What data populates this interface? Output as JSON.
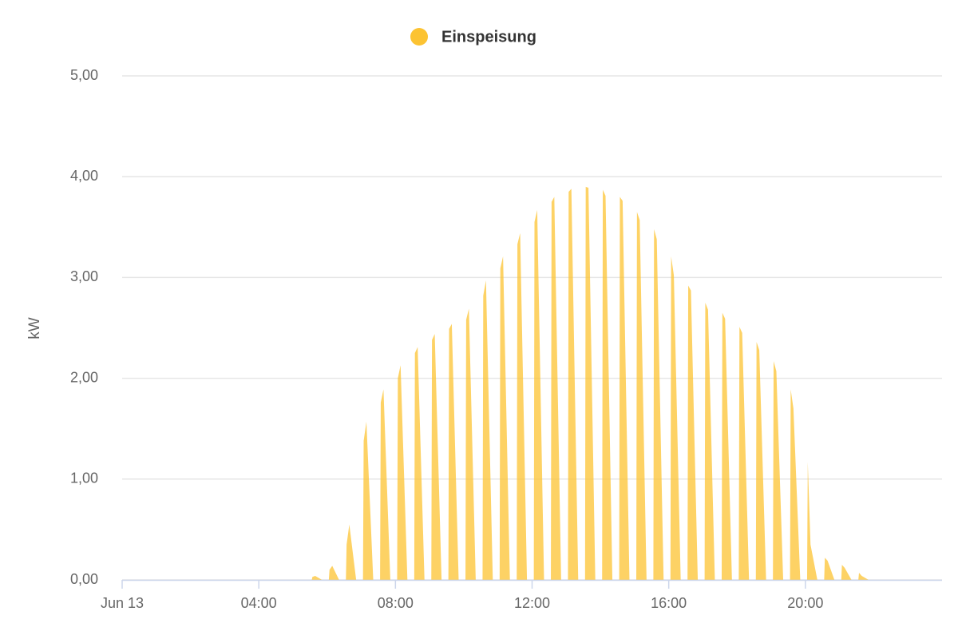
{
  "chart_data": {
    "type": "area",
    "y_label": "kW",
    "x": [
      0,
      5.55,
      5.57,
      5.65,
      5.85,
      6.05,
      6.07,
      6.15,
      6.35,
      6.55,
      6.57,
      6.65,
      6.85,
      7.05,
      7.07,
      7.15,
      7.35,
      7.55,
      7.57,
      7.65,
      7.85,
      8.05,
      8.07,
      8.15,
      8.35,
      8.55,
      8.57,
      8.65,
      8.85,
      9.05,
      9.07,
      9.15,
      9.35,
      9.55,
      9.57,
      9.65,
      9.85,
      10.05,
      10.07,
      10.15,
      10.35,
      10.55,
      10.57,
      10.65,
      10.85,
      11.05,
      11.07,
      11.15,
      11.35,
      11.55,
      11.57,
      11.65,
      11.85,
      12.05,
      12.07,
      12.15,
      12.35,
      12.55,
      12.57,
      12.65,
      12.85,
      13.05,
      13.07,
      13.15,
      13.35,
      13.55,
      13.57,
      13.65,
      13.85,
      14.05,
      14.07,
      14.15,
      14.35,
      14.55,
      14.57,
      14.65,
      14.85,
      15.05,
      15.07,
      15.15,
      15.35,
      15.55,
      15.57,
      15.65,
      15.85,
      16.05,
      16.07,
      16.15,
      16.35,
      16.55,
      16.57,
      16.65,
      16.85,
      17.05,
      17.07,
      17.15,
      17.35,
      17.55,
      17.57,
      17.65,
      17.85,
      18.05,
      18.07,
      18.15,
      18.35,
      18.55,
      18.57,
      18.65,
      18.85,
      19.05,
      19.07,
      19.15,
      19.35,
      19.55,
      19.57,
      19.65,
      19.85,
      20.05,
      20.07,
      20.15,
      20.35,
      20.55,
      20.57,
      20.65,
      20.85,
      21.05,
      21.07,
      21.15,
      21.35,
      21.55,
      21.57,
      21.65,
      21.85,
      24
    ],
    "series": [
      {
        "name": "Einspeisung",
        "color": "#fcc332",
        "values": [
          0,
          0,
          0.03,
          0.04,
          0,
          0,
          0.1,
          0.14,
          0,
          0,
          0.35,
          0.55,
          0,
          0,
          1.38,
          1.57,
          0,
          0,
          1.76,
          1.89,
          0,
          0,
          2.0,
          2.13,
          0,
          0,
          2.25,
          2.31,
          0,
          0,
          2.38,
          2.44,
          0,
          0,
          2.49,
          2.54,
          0,
          0,
          2.58,
          2.69,
          0,
          0,
          2.82,
          2.97,
          0,
          0,
          3.09,
          3.21,
          0,
          0,
          3.33,
          3.44,
          0,
          0,
          3.55,
          3.67,
          0,
          0,
          3.75,
          3.8,
          0,
          0,
          3.85,
          3.88,
          0,
          0,
          3.9,
          3.89,
          0,
          0,
          3.87,
          3.81,
          0,
          0,
          3.8,
          3.76,
          0,
          0,
          3.65,
          3.57,
          0,
          0,
          3.48,
          3.38,
          0,
          0,
          3.21,
          3.02,
          0,
          0,
          2.92,
          2.87,
          0,
          0,
          2.75,
          2.68,
          0,
          0,
          2.65,
          2.59,
          0,
          0,
          2.51,
          2.45,
          0,
          0,
          2.36,
          2.28,
          0,
          0,
          2.17,
          2.07,
          0,
          0,
          1.89,
          1.7,
          0,
          0,
          1.17,
          0.35,
          0,
          0,
          0.22,
          0.19,
          0,
          0,
          0.15,
          0.12,
          0,
          0,
          0.07,
          0.04,
          0,
          0
        ]
      }
    ],
    "xlim": [
      0,
      24
    ],
    "xticks": [
      {
        "value": 0,
        "label": "Jun 13"
      },
      {
        "value": 4,
        "label": "04:00"
      },
      {
        "value": 8,
        "label": "08:00"
      },
      {
        "value": 12,
        "label": "12:00"
      },
      {
        "value": 16,
        "label": "16:00"
      },
      {
        "value": 20,
        "label": "20:00"
      }
    ],
    "ylim": [
      0,
      5
    ],
    "yticks": [
      {
        "value": 0,
        "label": "0,00"
      },
      {
        "value": 1,
        "label": "1,00"
      },
      {
        "value": 2,
        "label": "2,00"
      },
      {
        "value": 3,
        "label": "3,00"
      },
      {
        "value": 4,
        "label": "4,00"
      },
      {
        "value": 5,
        "label": "5,00"
      }
    ],
    "grid": true
  }
}
